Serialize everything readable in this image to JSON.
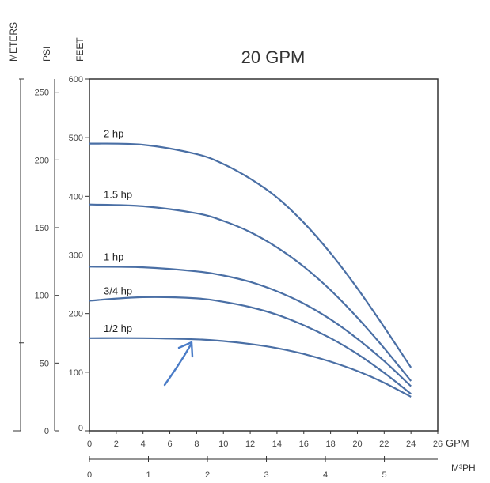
{
  "chart_data": {
    "type": "line",
    "title": "20 GPM",
    "x_units": {
      "primary": "GPM",
      "secondary": "M³PH"
    },
    "y_units": {
      "feet": "FEET",
      "psi": "PSI",
      "meters": "METERS"
    },
    "xlim": [
      0,
      26
    ],
    "x_ticks": [
      0,
      2,
      4,
      6,
      8,
      10,
      12,
      14,
      16,
      18,
      20,
      22,
      24,
      26
    ],
    "x2_ticks": [
      0,
      1,
      2,
      3,
      4,
      5
    ],
    "ylim": [
      0,
      600
    ],
    "y_feet_ticks": [
      0,
      100,
      200,
      300,
      400,
      500,
      600
    ],
    "y_psi_ticks": [
      0,
      50,
      100,
      150,
      200,
      250
    ],
    "series": [
      {
        "name": "2 hp",
        "x": [
          0,
          4,
          8,
          10,
          12,
          14,
          16,
          18,
          20,
          22,
          24
        ],
        "y": [
          490,
          488,
          472,
          455,
          430,
          398,
          355,
          303,
          243,
          177,
          108
        ]
      },
      {
        "name": "1.5 hp",
        "x": [
          0,
          4,
          8,
          10,
          12,
          14,
          16,
          18,
          20,
          22,
          24
        ],
        "y": [
          386,
          383,
          371,
          358,
          339,
          313,
          280,
          240,
          193,
          141,
          85
        ]
      },
      {
        "name": "1 hp",
        "x": [
          0,
          4,
          8,
          10,
          12,
          14,
          16,
          18,
          20,
          22,
          24
        ],
        "y": [
          280,
          279,
          272,
          265,
          254,
          238,
          217,
          190,
          157,
          119,
          76
        ]
      },
      {
        "name": "3/4 hp",
        "x": [
          0,
          4,
          8,
          10,
          12,
          14,
          16,
          18,
          20,
          22,
          24
        ],
        "y": [
          222,
          228,
          226,
          220,
          211,
          198,
          180,
          158,
          131,
          99,
          63
        ]
      },
      {
        "name": "1/2 hp",
        "x": [
          0,
          4,
          8,
          10,
          12,
          14,
          16,
          18,
          20,
          22,
          24
        ],
        "y": [
          158,
          158,
          156,
          153,
          148,
          141,
          131,
          118,
          102,
          82,
          58
        ]
      }
    ],
    "grid": false,
    "legend": "inline",
    "line_color": "#4a6fa5",
    "arrow_color": "#4a7cc7"
  }
}
